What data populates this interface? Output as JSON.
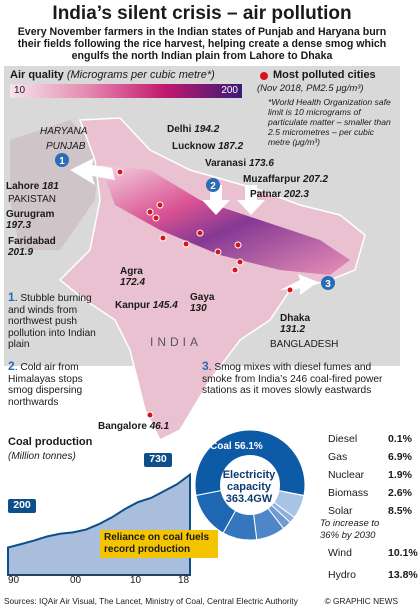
{
  "title": "India’s silent crisis – air pollution",
  "subtitle": "Every November farmers in the Indian states of Punjab and Haryana burn their fields following the rice harvest, helping create a dense smog which engulfs the north Indian plain from Lahore to Dhaka",
  "air_quality": {
    "label": "Air quality",
    "unit": "(Micrograms per cubic metre*)",
    "scale_min": "10",
    "scale_max": "200",
    "colors": [
      "#f6e4ec",
      "#e58ab0",
      "#c2186e",
      "#3a1a78"
    ]
  },
  "most_polluted": {
    "title": "Most polluted cities",
    "subtitle": "(Nov 2018, PM2.5 μg/m³)",
    "note": "*World Health Organization safe limit is 10 micrograms of particulate matter – smaller than 2.5 micrometres – per cubic metre (μg/m³)",
    "dot_color": "#d4161b"
  },
  "cities": [
    {
      "name": "Delhi",
      "value": "194.2"
    },
    {
      "name": "Lucknow",
      "value": "187.2"
    },
    {
      "name": "Varanasi",
      "value": "173.6"
    },
    {
      "name": "Muzaffarpur",
      "value": "207.2"
    },
    {
      "name": "Patnar",
      "value": "202.3"
    },
    {
      "name": "Lahore",
      "value": "181"
    },
    {
      "name": "Gurugram",
      "value": "197.3"
    },
    {
      "name": "Faridabad",
      "value": "201.9"
    },
    {
      "name": "Agra",
      "value": "172.4"
    },
    {
      "name": "Kanpur",
      "value": "145.4"
    },
    {
      "name": "Gaya",
      "value": "130"
    },
    {
      "name": "Dhaka",
      "value": "131.2"
    },
    {
      "name": "Bangalore",
      "value": "46.1"
    }
  ],
  "regions": {
    "haryana": "HARYANA",
    "punjab": "PUNJAB",
    "pakistan": "PAKISTAN",
    "india": "INDIA",
    "bangladesh": "BANGLADESH"
  },
  "notes": [
    {
      "num": "1",
      "text": "Stubble burning and winds from northwest push pollution into Indian plain"
    },
    {
      "num": "2",
      "text": "Cold air from Himalayas stops smog dispersing northwards"
    },
    {
      "num": "3",
      "text": "Smog mixes with diesel fumes and smoke from India’s 246 coal-fired power stations as it moves slowly eastwards"
    }
  ],
  "coal": {
    "title": "Coal production",
    "unit": "(Million tonnes)",
    "start_label": "200",
    "end_label": "730",
    "callout": "Reliance on coal fuels record production",
    "years": [
      "90",
      "00",
      "10",
      "18"
    ]
  },
  "chart_data": [
    {
      "type": "area",
      "title": "Coal production",
      "ylabel": "Million tonnes",
      "x": [
        1990,
        1992,
        1994,
        1996,
        1998,
        2000,
        2002,
        2004,
        2006,
        2008,
        2010,
        2012,
        2014,
        2016,
        2018
      ],
      "values": [
        200,
        225,
        250,
        280,
        300,
        310,
        330,
        370,
        420,
        480,
        530,
        560,
        610,
        660,
        730
      ],
      "xticks": [
        "90",
        "00",
        "10",
        "18"
      ],
      "ylim": [
        0,
        800
      ]
    },
    {
      "type": "pie",
      "title": "Electricity capacity",
      "total": "363.4GW",
      "categories": [
        "Coal",
        "Diesel",
        "Gas",
        "Nuclear",
        "Biomass",
        "Solar",
        "Wind",
        "Hydro"
      ],
      "values": [
        56.1,
        0.1,
        6.9,
        1.9,
        2.6,
        8.5,
        10.1,
        13.8
      ],
      "colors": [
        "#0d5aa7",
        "#c9d9ee",
        "#a7c3e6",
        "#89afdc",
        "#6e9bd2",
        "#4f86c7",
        "#3577bf",
        "#1e67b3"
      ]
    }
  ],
  "electricity": {
    "center_title": "Electricity capacity",
    "center_value": "363.4GW",
    "coal_label": "Coal 56.1%",
    "solar_note": "To increase to 36% by 2030",
    "rows": [
      {
        "name": "Diesel",
        "pct": "0.1%"
      },
      {
        "name": "Gas",
        "pct": "6.9%"
      },
      {
        "name": "Nuclear",
        "pct": "1.9%"
      },
      {
        "name": "Biomass",
        "pct": "2.6%"
      },
      {
        "name": "Solar",
        "pct": "8.5%"
      },
      {
        "name": "Wind",
        "pct": "10.1%"
      },
      {
        "name": "Hydro",
        "pct": "13.8%"
      }
    ]
  },
  "footer": {
    "sources": "Sources: IQAir Air Visual, The Lancet, Ministry of Coal, Central Electric Authority",
    "credit": "© GRAPHIC NEWS"
  }
}
